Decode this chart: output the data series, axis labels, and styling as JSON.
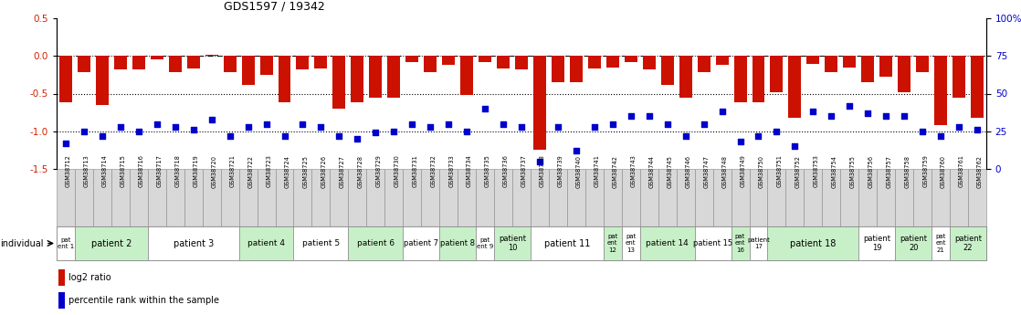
{
  "title": "GDS1597 / 19342",
  "gsm_labels": [
    "GSM38712",
    "GSM38713",
    "GSM38714",
    "GSM38715",
    "GSM38716",
    "GSM38717",
    "GSM38718",
    "GSM38719",
    "GSM38720",
    "GSM38721",
    "GSM38722",
    "GSM38723",
    "GSM38724",
    "GSM38725",
    "GSM38726",
    "GSM38727",
    "GSM38728",
    "GSM38729",
    "GSM38730",
    "GSM38731",
    "GSM38732",
    "GSM38733",
    "GSM38734",
    "GSM38735",
    "GSM38736",
    "GSM38737",
    "GSM38738",
    "GSM38739",
    "GSM38740",
    "GSM38741",
    "GSM38742",
    "GSM38743",
    "GSM38744",
    "GSM38745",
    "GSM38746",
    "GSM38747",
    "GSM38748",
    "GSM38749",
    "GSM38750",
    "GSM38751",
    "GSM38752",
    "GSM38753",
    "GSM38754",
    "GSM38755",
    "GSM38756",
    "GSM38757",
    "GSM38758",
    "GSM38759",
    "GSM38760",
    "GSM38761",
    "GSM38762"
  ],
  "log2_ratio": [
    -0.62,
    -0.22,
    -0.65,
    -0.18,
    -0.18,
    -0.05,
    -0.22,
    -0.17,
    0.02,
    -0.22,
    -0.38,
    -0.25,
    -0.62,
    -0.18,
    -0.17,
    -0.7,
    -0.62,
    -0.55,
    -0.55,
    -0.08,
    -0.22,
    -0.12,
    -0.52,
    -0.08,
    -0.17,
    -0.18,
    -1.25,
    -0.35,
    -0.35,
    -0.17,
    -0.15,
    -0.08,
    -0.18,
    -0.38,
    -0.55,
    -0.22,
    -0.12,
    -0.62,
    -0.62,
    -0.48,
    -0.82,
    -0.1,
    -0.22,
    -0.15,
    -0.35,
    -0.28,
    -0.48,
    -0.22,
    -0.92,
    -0.55,
    -0.82
  ],
  "percentile": [
    17,
    25,
    22,
    28,
    25,
    30,
    28,
    26,
    33,
    22,
    28,
    30,
    22,
    30,
    28,
    22,
    20,
    24,
    25,
    30,
    28,
    30,
    25,
    40,
    30,
    28,
    5,
    28,
    12,
    28,
    30,
    35,
    35,
    30,
    22,
    30,
    38,
    18,
    22,
    25,
    15,
    38,
    35,
    42,
    37,
    35,
    35,
    25,
    22,
    28,
    26
  ],
  "patients": [
    {
      "label": "pat\nent 1",
      "start": 0,
      "end": 1,
      "color": "#ffffff"
    },
    {
      "label": "patient 2",
      "start": 1,
      "end": 5,
      "color": "#c8f0c8"
    },
    {
      "label": "patient 3",
      "start": 5,
      "end": 10,
      "color": "#ffffff"
    },
    {
      "label": "patient 4",
      "start": 10,
      "end": 13,
      "color": "#c8f0c8"
    },
    {
      "label": "patient 5",
      "start": 13,
      "end": 16,
      "color": "#ffffff"
    },
    {
      "label": "patient 6",
      "start": 16,
      "end": 19,
      "color": "#c8f0c8"
    },
    {
      "label": "patient 7",
      "start": 19,
      "end": 21,
      "color": "#ffffff"
    },
    {
      "label": "patient 8",
      "start": 21,
      "end": 23,
      "color": "#c8f0c8"
    },
    {
      "label": "pat\nent 9",
      "start": 23,
      "end": 24,
      "color": "#ffffff"
    },
    {
      "label": "patient\n10",
      "start": 24,
      "end": 26,
      "color": "#c8f0c8"
    },
    {
      "label": "patient 11",
      "start": 26,
      "end": 30,
      "color": "#ffffff"
    },
    {
      "label": "pat\nent\n12",
      "start": 30,
      "end": 31,
      "color": "#c8f0c8"
    },
    {
      "label": "pat\nent\n13",
      "start": 31,
      "end": 32,
      "color": "#ffffff"
    },
    {
      "label": "patient 14",
      "start": 32,
      "end": 35,
      "color": "#c8f0c8"
    },
    {
      "label": "patient 15",
      "start": 35,
      "end": 37,
      "color": "#ffffff"
    },
    {
      "label": "pat\nent\n16",
      "start": 37,
      "end": 38,
      "color": "#c8f0c8"
    },
    {
      "label": "patient\n17",
      "start": 38,
      "end": 39,
      "color": "#ffffff"
    },
    {
      "label": "patient 18",
      "start": 39,
      "end": 44,
      "color": "#c8f0c8"
    },
    {
      "label": "patient\n19",
      "start": 44,
      "end": 46,
      "color": "#ffffff"
    },
    {
      "label": "patient\n20",
      "start": 46,
      "end": 48,
      "color": "#c8f0c8"
    },
    {
      "label": "pat\nent\n21",
      "start": 48,
      "end": 49,
      "color": "#ffffff"
    },
    {
      "label": "patient\n22",
      "start": 49,
      "end": 51,
      "color": "#c8f0c8"
    }
  ],
  "bar_color": "#cc1100",
  "dot_color": "#0000cc",
  "ylim": [
    -1.5,
    0.5
  ],
  "right_ylim": [
    0,
    100
  ],
  "right_yticks": [
    0,
    25,
    50,
    75,
    100
  ],
  "right_yticklabels": [
    "0",
    "25",
    "50",
    "75",
    "100%"
  ],
  "yticks": [
    -1.5,
    -1.0,
    -0.5,
    0.0,
    0.5
  ],
  "left_color": "#cc2200",
  "right_color": "#0000cc",
  "gsm_bg": "#d8d8d8",
  "gsm_border": "#888888"
}
